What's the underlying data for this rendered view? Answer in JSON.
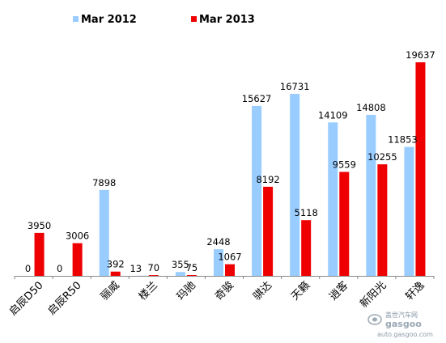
{
  "chart_data": {
    "type": "bar",
    "categories": [
      "启辰D50",
      "启辰R50",
      "骊威",
      "楼兰",
      "玛驰",
      "奇骏",
      "骐达",
      "天籁",
      "逍客",
      "新阳光",
      "轩逸"
    ],
    "series": [
      {
        "name": "Mar 2012",
        "values": [
          0,
          0,
          7898,
          13,
          355,
          2448,
          15627,
          16731,
          14109,
          14808,
          11853
        ]
      },
      {
        "name": "Mar 2013",
        "values": [
          3950,
          3006,
          392,
          70,
          75,
          1067,
          8192,
          5118,
          9559,
          10255,
          19637
        ]
      }
    ],
    "ylim": [
      0,
      22000
    ],
    "legend_position": "top",
    "grid": false,
    "colors": {
      "Mar 2012": "#99ccff",
      "Mar 2013": "#ee0000"
    }
  },
  "watermark": {
    "brand_cn": "盖世汽车网",
    "brand_en": "gasgoo",
    "url": "auto.gasgoo.com"
  }
}
